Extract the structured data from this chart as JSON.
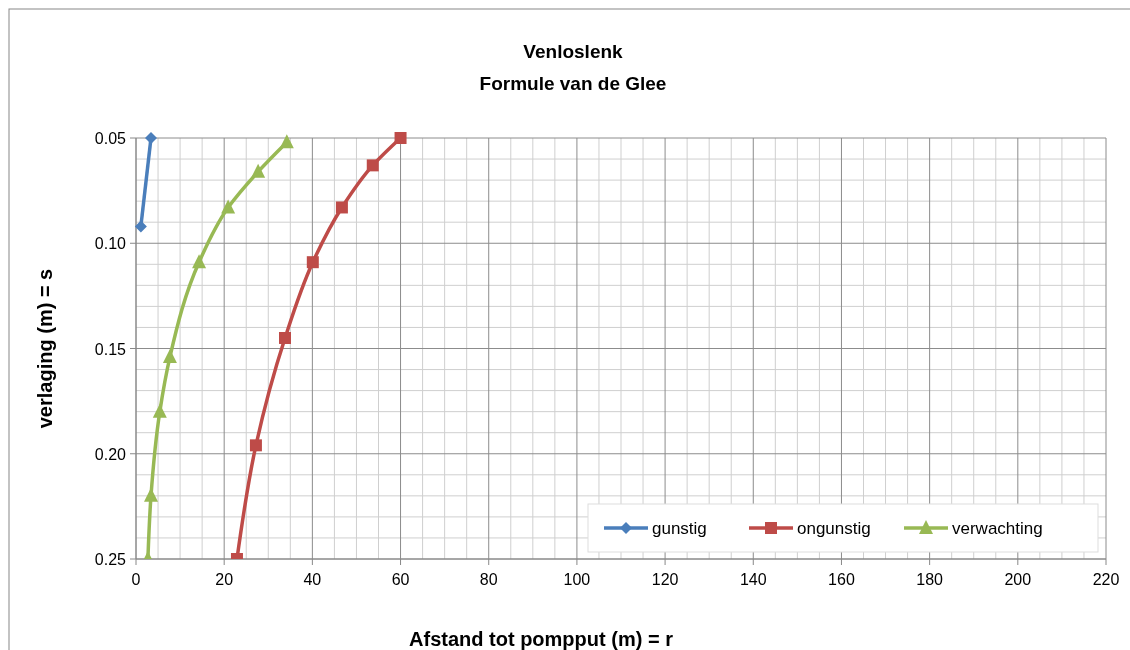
{
  "chart_data": {
    "type": "line",
    "title": "Venloslenk",
    "subtitle": "Formule van de Glee",
    "xlabel": "Afstand tot pompput  (m) = r",
    "ylabel": "verlaging (m) = s",
    "xlim": [
      0,
      220
    ],
    "xticks": [
      0,
      20,
      40,
      60,
      80,
      100,
      120,
      140,
      160,
      180,
      200,
      220
    ],
    "ylim": [
      0.25,
      0.05
    ],
    "yticks": [
      {
        "value": 0.05,
        "label": "0.05"
      },
      {
        "value": 0.1,
        "label": "0.10"
      },
      {
        "value": 0.15,
        "label": "0.15"
      },
      {
        "value": 0.2,
        "label": "0.20"
      },
      {
        "value": 0.25,
        "label": "0.25"
      }
    ],
    "grid": true,
    "legend": "bottom right",
    "series": [
      {
        "name": "gunstig",
        "color": "#4a7ebb",
        "marker": "diamond",
        "x": [
          3.4,
          1.1
        ],
        "values": [
          0.05,
          0.092
        ]
      },
      {
        "name": "ongunstig",
        "color": "#be4b48",
        "marker": "square",
        "x": [
          60,
          53.7,
          46.7,
          40.1,
          33.8,
          27.2,
          22.9
        ],
        "values": [
          0.05,
          0.063,
          0.083,
          0.109,
          0.145,
          0.196,
          0.25
        ]
      },
      {
        "name": "verwachting",
        "color": "#98b954",
        "marker": "triangle",
        "x": [
          34.2,
          27.7,
          20.9,
          14.3,
          7.7,
          5.4,
          3.4,
          2.7
        ],
        "values": [
          0.052,
          0.066,
          0.083,
          0.109,
          0.154,
          0.18,
          0.22,
          0.25
        ]
      }
    ]
  }
}
